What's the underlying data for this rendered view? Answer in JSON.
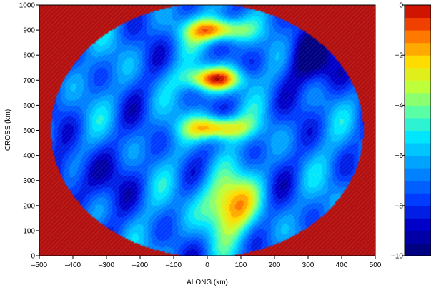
{
  "chart_data": {
    "type": "heatmap",
    "title": "",
    "xlabel": "ALONG (km)",
    "ylabel": "CROSS (km)",
    "xlim": [
      -500,
      500
    ],
    "ylim": [
      0,
      1000
    ],
    "xticks": [
      "-500",
      "-400",
      "-300",
      "-200",
      "-100",
      "0",
      "100",
      "200",
      "300",
      "400",
      "500"
    ],
    "yticks": [
      "0",
      "100",
      "200",
      "300",
      "400",
      "500",
      "600",
      "700",
      "800",
      "900",
      "1000"
    ],
    "colorbar": {
      "range": [
        -10,
        0
      ],
      "ticks": [
        "0",
        "-2",
        "-4",
        "-6",
        "-8",
        "-10"
      ],
      "levels": [
        -10,
        -9.5,
        -9,
        -8.5,
        -8,
        -7.5,
        -7,
        -6.5,
        -6,
        -5.5,
        -5,
        -4.5,
        -4,
        -3.5,
        -3,
        -2.5,
        -2,
        -1.5,
        -1,
        -0.5,
        0
      ]
    },
    "domain_shape": "ellipse",
    "domain_center": [
      0,
      500
    ],
    "domain_radii": [
      465,
      505
    ],
    "outside_value": 0,
    "background_value": -7,
    "features": [
      {
        "kind": "maximum",
        "x": 30,
        "y": 900,
        "value": -0.5
      },
      {
        "kind": "maximum",
        "x": 20,
        "y": 705,
        "value": -0.5
      },
      {
        "kind": "maximum",
        "x": 30,
        "y": 510,
        "value": -0.5
      },
      {
        "kind": "maximum",
        "x": 60,
        "y": 200,
        "value": -1.5
      },
      {
        "kind": "minimum",
        "x": 330,
        "y": 780,
        "value": -9.5
      },
      {
        "kind": "minimum",
        "x": -380,
        "y": 300,
        "value": -9
      }
    ],
    "grid": false,
    "legend": "colorbar-right"
  }
}
